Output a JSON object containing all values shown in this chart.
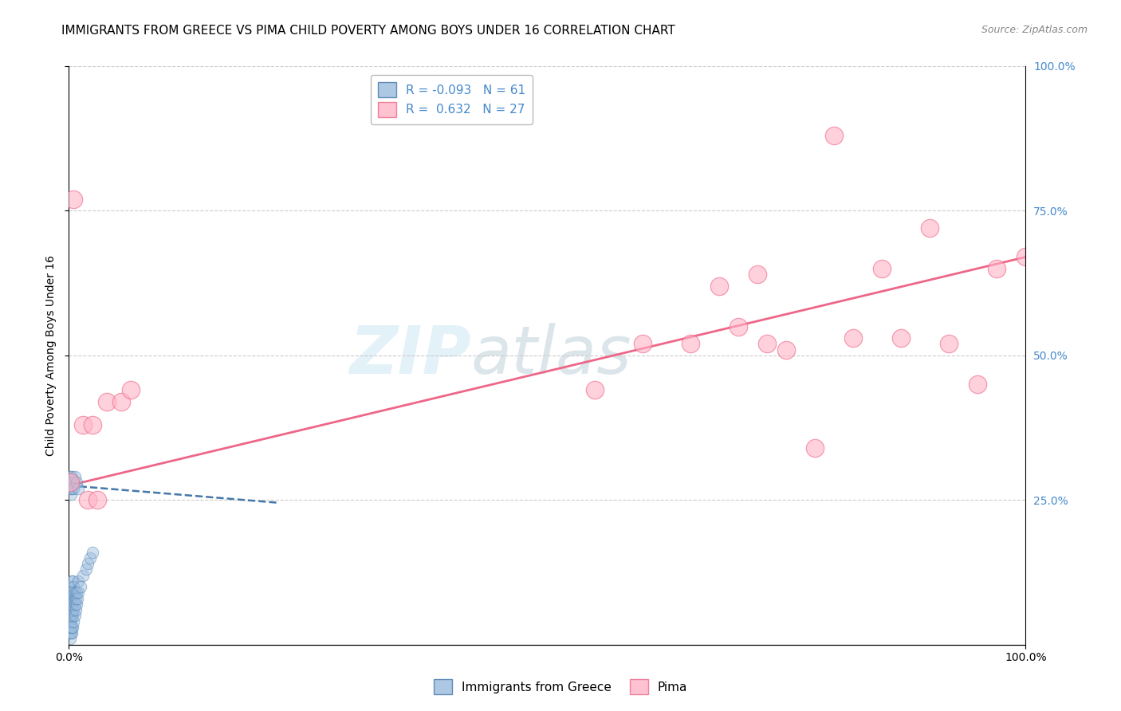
{
  "title": "IMMIGRANTS FROM GREECE VS PIMA CHILD POVERTY AMONG BOYS UNDER 16 CORRELATION CHART",
  "source": "Source: ZipAtlas.com",
  "ylabel": "Child Poverty Among Boys Under 16",
  "xlim": [
    0.0,
    1.0
  ],
  "ylim": [
    0.0,
    1.0
  ],
  "legend_r_blue": "-0.093",
  "legend_n_blue": "61",
  "legend_r_pink": "0.632",
  "legend_n_pink": "27",
  "blue_color": "#99BBDD",
  "pink_color": "#FFB3C6",
  "blue_edge_color": "#4477AA",
  "pink_edge_color": "#EE6688",
  "pink_line_color": "#EE6688",
  "blue_line_color": "#4477AA",
  "right_axis_color": "#4488CC",
  "grid_color": "#CCCCCC",
  "background_color": "#FFFFFF",
  "title_fontsize": 11,
  "label_fontsize": 10,
  "tick_fontsize": 10,
  "legend_fontsize": 11,
  "blue_scatter_x": [
    0.001,
    0.001,
    0.001,
    0.001,
    0.001,
    0.001,
    0.001,
    0.001,
    0.001,
    0.001,
    0.002,
    0.002,
    0.002,
    0.002,
    0.002,
    0.002,
    0.002,
    0.002,
    0.003,
    0.003,
    0.003,
    0.003,
    0.003,
    0.003,
    0.004,
    0.004,
    0.004,
    0.004,
    0.004,
    0.005,
    0.005,
    0.005,
    0.005,
    0.006,
    0.006,
    0.006,
    0.007,
    0.007,
    0.008,
    0.008,
    0.009,
    0.01,
    0.01,
    0.012,
    0.015,
    0.018,
    0.02,
    0.022,
    0.025,
    0.001,
    0.001,
    0.001,
    0.002,
    0.002,
    0.003,
    0.003,
    0.004,
    0.005,
    0.006,
    0.008,
    0.01
  ],
  "blue_scatter_y": [
    0.01,
    0.02,
    0.03,
    0.04,
    0.05,
    0.06,
    0.07,
    0.08,
    0.09,
    0.1,
    0.02,
    0.03,
    0.04,
    0.05,
    0.06,
    0.07,
    0.08,
    0.09,
    0.02,
    0.03,
    0.05,
    0.07,
    0.09,
    0.11,
    0.03,
    0.05,
    0.07,
    0.09,
    0.11,
    0.04,
    0.06,
    0.08,
    0.1,
    0.05,
    0.07,
    0.09,
    0.06,
    0.08,
    0.07,
    0.09,
    0.08,
    0.09,
    0.11,
    0.1,
    0.12,
    0.13,
    0.14,
    0.15,
    0.16,
    0.27,
    0.28,
    0.29,
    0.26,
    0.28,
    0.27,
    0.29,
    0.28,
    0.27,
    0.29,
    0.28,
    0.27
  ],
  "pink_scatter_x": [
    0.001,
    0.005,
    0.015,
    0.02,
    0.025,
    0.03,
    0.04,
    0.055,
    0.065,
    0.55,
    0.6,
    0.65,
    0.68,
    0.7,
    0.72,
    0.73,
    0.75,
    0.78,
    0.8,
    0.82,
    0.85,
    0.87,
    0.9,
    0.92,
    0.95,
    0.97,
    1.0
  ],
  "pink_scatter_y": [
    0.28,
    0.77,
    0.38,
    0.25,
    0.38,
    0.25,
    0.42,
    0.42,
    0.44,
    0.44,
    0.52,
    0.52,
    0.62,
    0.55,
    0.64,
    0.52,
    0.51,
    0.34,
    0.88,
    0.53,
    0.65,
    0.53,
    0.72,
    0.52,
    0.45,
    0.65,
    0.67
  ],
  "pink_line_x_start": 0.0,
  "pink_line_x_end": 1.0,
  "pink_line_y_start": 0.275,
  "pink_line_y_end": 0.67,
  "blue_line_x_start": 0.0,
  "blue_line_x_end": 0.22,
  "blue_line_y_start": 0.275,
  "blue_line_y_end": 0.245
}
